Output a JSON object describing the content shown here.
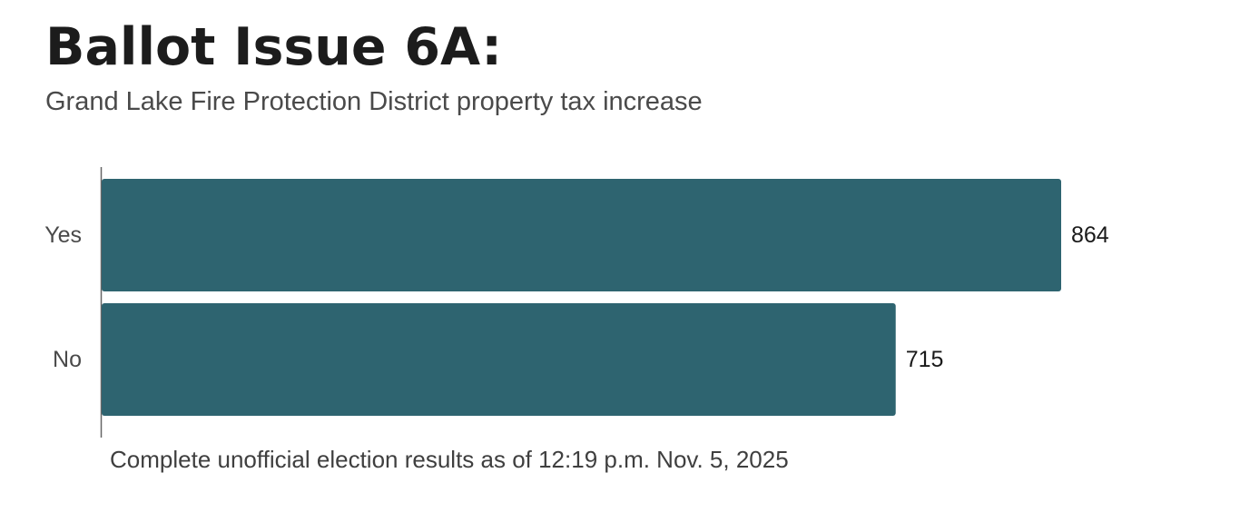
{
  "chart_data": {
    "type": "bar",
    "orientation": "horizontal",
    "title": "Ballot Issue 6A:",
    "subtitle": "Grand Lake Fire Protection District property tax increase",
    "categories": [
      "Yes",
      "No"
    ],
    "values": [
      864,
      715
    ],
    "value_labels": [
      "864",
      "715"
    ],
    "xlim": [
      0,
      864
    ],
    "grid": false,
    "legend": "none",
    "bar_color": "#2e6470",
    "note": "Complete unofficial election results as of 12:19 p.m. Nov. 5, 2025"
  }
}
